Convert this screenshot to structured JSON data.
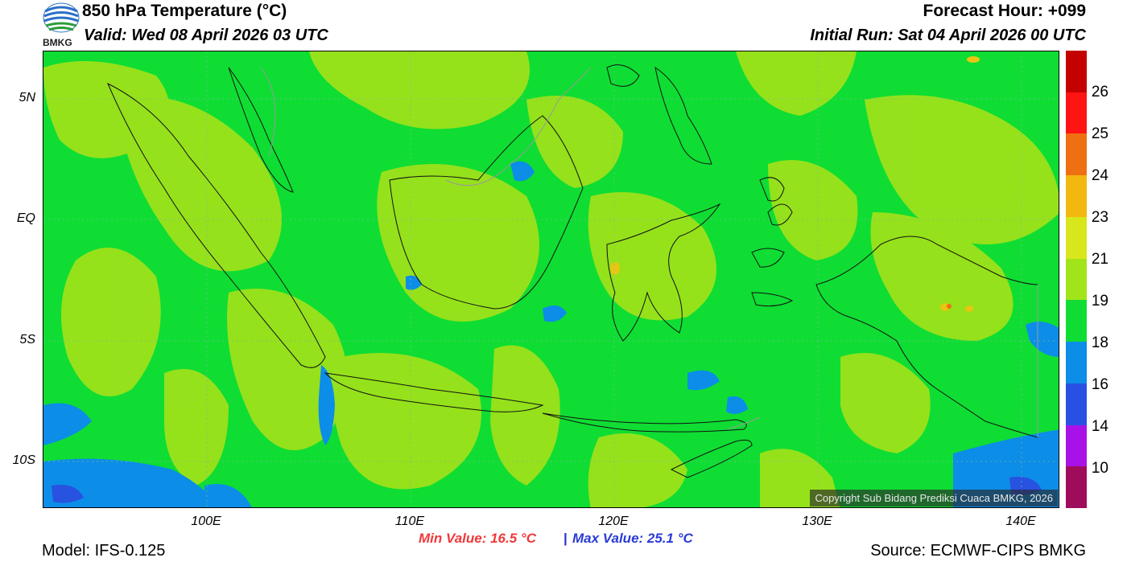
{
  "header": {
    "title": "850 hPa Temperature (°C)",
    "valid": "Valid: Wed 08 April 2026 03 UTC",
    "forecast_hour": "Forecast Hour: +099",
    "initial_run": "Initial Run: Sat 04 April 2026 00 UTC",
    "logo_text": "BMKG"
  },
  "map": {
    "lat_labels": [
      "5N",
      "EQ",
      "5S",
      "10S"
    ],
    "lon_labels": [
      "100E",
      "110E",
      "120E",
      "130E",
      "140E"
    ],
    "copyright": "Copyright Sub Bidang Prediksi Cuaca BMKG, 2026",
    "field_colors": {
      "base": "#0fdd33",
      "warm": "#9de21a",
      "cool": "#0c8de8",
      "cold": "#2852e0",
      "hot": "#e8c612"
    }
  },
  "colorbar": {
    "labels": [
      "26",
      "25",
      "24",
      "23",
      "21",
      "19",
      "18",
      "16",
      "14",
      "10"
    ],
    "colors": [
      "#c40000",
      "#ff1414",
      "#ee7012",
      "#f2b810",
      "#d8e61c",
      "#a2e41a",
      "#10dd34",
      "#0c8de8",
      "#2850e2",
      "#a812e8",
      "#a00c5c"
    ]
  },
  "footer": {
    "min_value": "Min Value: 16.5 °C",
    "separator": "|",
    "max_value": "Max Value: 25.1 °C",
    "model": "Model: IFS-0.125",
    "source": "Source: ECMWF-CIPS BMKG"
  }
}
